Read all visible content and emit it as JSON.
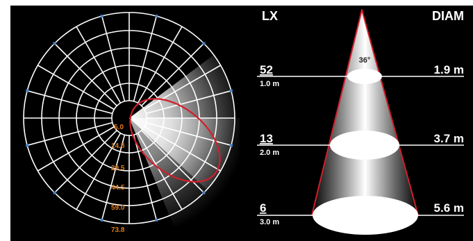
{
  "polar": {
    "ring_labels": [
      "5.0",
      "14.8",
      "29.5",
      "44.5",
      "59.0",
      "73.8"
    ],
    "ring_label_color": "#e07b1c",
    "grid_color": "#ffffff",
    "beam_outline_color": "#d21f2b"
  },
  "cone": {
    "header_lux": "LX",
    "header_diameter": "DIAM",
    "beam_angle": "36°",
    "outline_color": "#d21f2b",
    "levels": [
      {
        "lux": "52",
        "distance": "1.0 m",
        "diameter": "1.9 m"
      },
      {
        "lux": "13",
        "distance": "2.0 m",
        "diameter": "3.7 m"
      },
      {
        "lux": "6",
        "distance": "3.0 m",
        "diameter": "5.6 m"
      }
    ]
  }
}
